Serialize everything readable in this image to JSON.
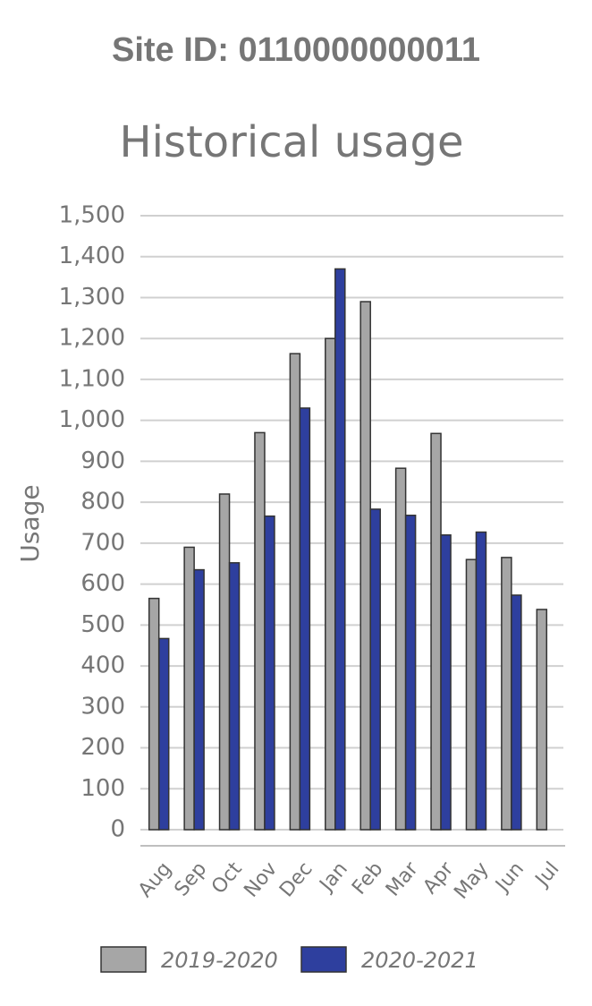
{
  "header": "Site ID: 0110000000011",
  "chart_data": {
    "type": "bar",
    "title": "Historical usage",
    "y_label": "Usage",
    "categories": [
      "Aug",
      "Sep",
      "Oct",
      "Nov",
      "Dec",
      "Jan",
      "Feb",
      "Mar",
      "Apr",
      "May",
      "Jun",
      "Jul"
    ],
    "series": [
      {
        "name": "2019-2020",
        "color": "#a6a6a6",
        "values": [
          565,
          690,
          820,
          970,
          1163,
          1200,
          1290,
          883,
          968,
          660,
          665,
          538
        ]
      },
      {
        "name": "2020-2021",
        "color": "#2e3f9e",
        "values": [
          467,
          635,
          652,
          766,
          1030,
          1370,
          783,
          768,
          720,
          727,
          573,
          null
        ]
      }
    ],
    "ylim": [
      0,
      1500
    ],
    "yticks": [
      0,
      100,
      200,
      300,
      400,
      500,
      600,
      700,
      800,
      900,
      {
        "value": 1000,
        "label": "1,000"
      },
      {
        "value": 1100,
        "label": "1,100"
      },
      {
        "value": 1200,
        "label": "1,200"
      },
      {
        "value": 1300,
        "label": "1,300"
      },
      {
        "value": 1400,
        "label": "1,400"
      },
      {
        "value": 1500,
        "label": "1,500"
      }
    ],
    "grid": true,
    "legend": "bottom"
  }
}
